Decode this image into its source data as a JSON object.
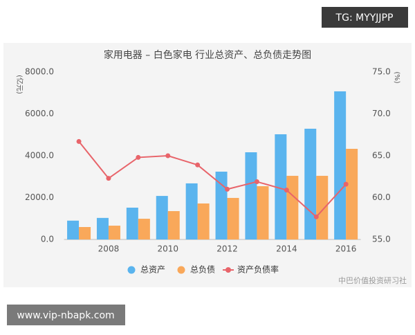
{
  "chart_data": {
    "type": "bar",
    "title": "家用电器 – 白色家电 行业总资产、总负债走势图",
    "ylabel": "(亿元)",
    "y2label": "(%)",
    "categories": [
      null,
      "2008",
      null,
      "2010",
      null,
      "2012",
      null,
      "2014",
      null,
      "2016"
    ],
    "series": [
      {
        "name": "总资产",
        "color": "#5ab4ee",
        "type": "bar",
        "values": [
          900,
          1030,
          1520,
          2080,
          2680,
          3240,
          4165,
          5025,
          5290,
          7075
        ]
      },
      {
        "name": "总负债",
        "color": "#f9a85a",
        "type": "bar",
        "values": [
          595,
          660,
          990,
          1355,
          1720,
          1985,
          2545,
          3040,
          3040,
          4330
        ]
      },
      {
        "name": "资产负债率",
        "color": "#e8646a",
        "type": "line",
        "axis": "y2",
        "values": [
          66.7,
          62.3,
          64.8,
          65.0,
          63.9,
          61.0,
          61.9,
          60.9,
          57.7,
          61.6
        ]
      }
    ],
    "ylim": [
      0,
      8000
    ],
    "yticks": [
      {
        "value": 0,
        "label": "0.0"
      },
      {
        "value": 2000,
        "label": "2000.0"
      },
      {
        "value": 4000,
        "label": "4000.0"
      },
      {
        "value": 6000,
        "label": "6000.0"
      },
      {
        "value": 8000,
        "label": "8000.0"
      }
    ],
    "y2lim": [
      55,
      75
    ],
    "y2ticks": [
      {
        "value": 55,
        "label": "55.0"
      },
      {
        "value": 60,
        "label": "60.0"
      },
      {
        "value": 65,
        "label": "65.0"
      },
      {
        "value": 70,
        "label": "70.0"
      },
      {
        "value": 75,
        "label": "75.0"
      }
    ],
    "grid": false,
    "legend": "bottom",
    "source": "中巴价值投资研习社"
  },
  "watermark": {
    "top": "TG: MYYJJPP",
    "bottom": "www.vip-nbapk.com"
  }
}
